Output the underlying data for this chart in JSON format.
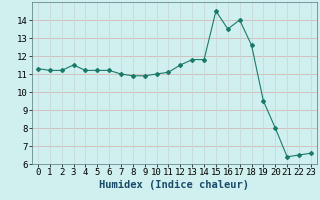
{
  "x": [
    0,
    1,
    2,
    3,
    4,
    5,
    6,
    7,
    8,
    9,
    10,
    11,
    12,
    13,
    14,
    15,
    16,
    17,
    18,
    19,
    20,
    21,
    22,
    23
  ],
  "y": [
    11.3,
    11.2,
    11.2,
    11.5,
    11.2,
    11.2,
    11.2,
    11.0,
    10.9,
    10.9,
    11.0,
    11.1,
    11.5,
    11.8,
    11.8,
    14.5,
    13.5,
    14.0,
    12.6,
    9.5,
    8.0,
    6.4,
    6.5,
    6.6
  ],
  "xlabel": "Humidex (Indice chaleur)",
  "xlim": [
    -0.5,
    23.5
  ],
  "ylim": [
    6,
    15
  ],
  "yticks": [
    6,
    7,
    8,
    9,
    10,
    11,
    12,
    13,
    14
  ],
  "xticks": [
    0,
    1,
    2,
    3,
    4,
    5,
    6,
    7,
    8,
    9,
    10,
    11,
    12,
    13,
    14,
    15,
    16,
    17,
    18,
    19,
    20,
    21,
    22,
    23
  ],
  "line_color": "#1a7a6a",
  "marker": "D",
  "marker_size": 2.0,
  "bg_color": "#cff0ee",
  "grid_color_h": "#d4b8b8",
  "grid_color_v": "#c8d8d8",
  "tick_label_fontsize": 6.5,
  "xlabel_fontsize": 7.5
}
